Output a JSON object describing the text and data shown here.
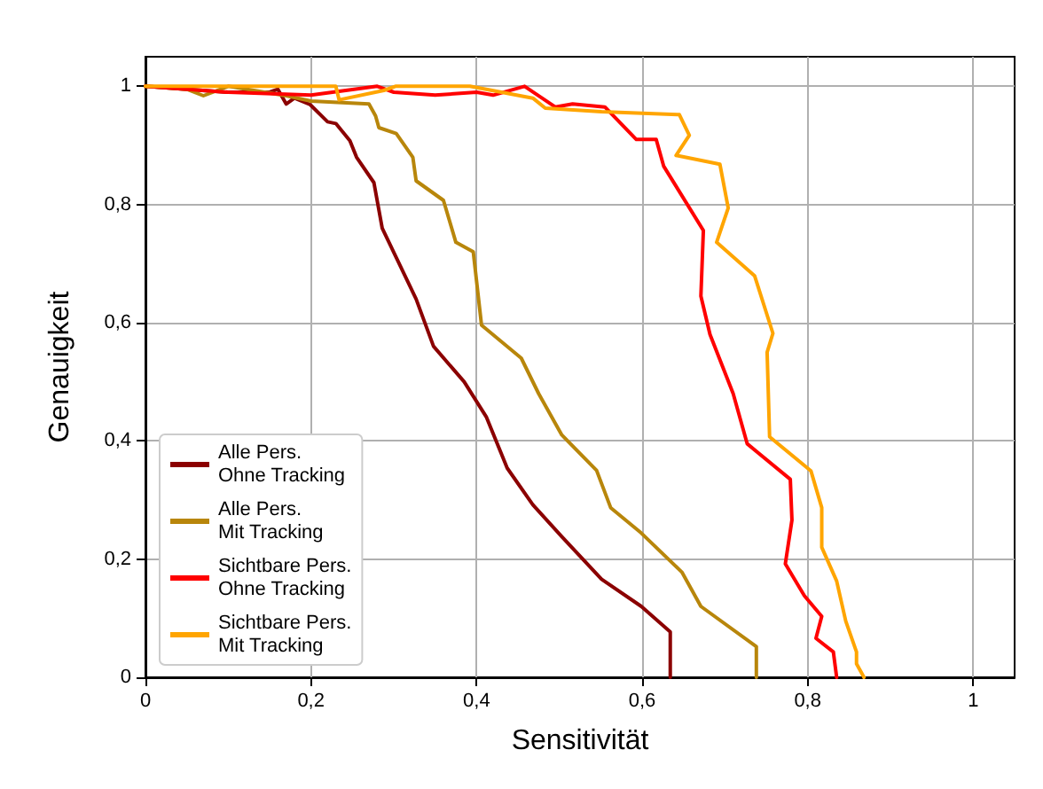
{
  "chart_data": {
    "type": "line",
    "xlabel": "Sensitivität",
    "ylabel": "Genauigkeit",
    "xlim": [
      0,
      1.05
    ],
    "ylim": [
      0,
      1.05
    ],
    "xticks": [
      0,
      {
        "value": 0.2,
        "label": "0,2"
      },
      {
        "value": 0.4,
        "label": "0,4"
      },
      {
        "value": 0.6,
        "label": "0,6"
      },
      {
        "value": 0.8,
        "label": "0,8"
      },
      1
    ],
    "yticks": [
      0,
      {
        "value": 0.2,
        "label": "0,2"
      },
      {
        "value": 0.4,
        "label": "0,4"
      },
      {
        "value": 0.6,
        "label": "0,6"
      },
      {
        "value": 0.8,
        "label": "0,8"
      },
      1
    ],
    "grid": true,
    "legend": "bottom left",
    "marker": "none",
    "line_style": "solid",
    "series": [
      {
        "name": "Alle Pers.\nOhne Tracking",
        "color": "#8b0000",
        "x": [
          0,
          0.05,
          0.1,
          0.15,
          0.16,
          0.17,
          0.18,
          0.199,
          0.22,
          0.23,
          0.247,
          0.255,
          0.276,
          0.286,
          0.327,
          0.348,
          0.385,
          0.412,
          0.437,
          0.468,
          0.503,
          0.551,
          0.599,
          0.634,
          0.634
        ],
        "values": [
          1,
          0.995,
          0.99,
          0.99,
          0.995,
          0.97,
          0.98,
          0.969,
          0.94,
          0.937,
          0.908,
          0.88,
          0.837,
          0.76,
          0.64,
          0.56,
          0.5,
          0.44,
          0.354,
          0.292,
          0.238,
          0.166,
          0.12,
          0.077,
          0
        ]
      },
      {
        "name": "Alle Pers.\nMit Tracking",
        "color": "#b8860b",
        "x": [
          0,
          0.05,
          0.07,
          0.1,
          0.17,
          0.2,
          0.27,
          0.278,
          0.282,
          0.303,
          0.323,
          0.327,
          0.36,
          0.375,
          0.396,
          0.406,
          0.454,
          0.475,
          0.503,
          0.545,
          0.562,
          0.599,
          0.648,
          0.671,
          0.738,
          0.738
        ],
        "values": [
          1,
          0.995,
          0.984,
          1,
          0.984,
          0.975,
          0.97,
          0.95,
          0.93,
          0.92,
          0.88,
          0.84,
          0.807,
          0.736,
          0.72,
          0.596,
          0.54,
          0.48,
          0.41,
          0.35,
          0.287,
          0.244,
          0.178,
          0.12,
          0.052,
          0
        ]
      },
      {
        "name": "Sichtbare Pers.\nOhne Tracking",
        "color": "#ff0000",
        "x": [
          0,
          0.1,
          0.2,
          0.28,
          0.3,
          0.35,
          0.4,
          0.42,
          0.458,
          0.495,
          0.516,
          0.555,
          0.593,
          0.617,
          0.626,
          0.674,
          0.671,
          0.682,
          0.71,
          0.727,
          0.779,
          0.781,
          0.773,
          0.796,
          0.817,
          0.81,
          0.831,
          0.835
        ],
        "values": [
          1,
          0.99,
          0.985,
          1,
          0.99,
          0.985,
          0.99,
          0.985,
          1,
          0.965,
          0.97,
          0.965,
          0.91,
          0.91,
          0.865,
          0.756,
          0.645,
          0.58,
          0.48,
          0.395,
          0.335,
          0.266,
          0.192,
          0.138,
          0.103,
          0.066,
          0.043,
          0
        ]
      },
      {
        "name": "Sichtbare Pers.\nMit Tracking",
        "color": "#ffa500",
        "x": [
          0,
          0.23,
          0.234,
          0.288,
          0.302,
          0.392,
          0.468,
          0.483,
          0.551,
          0.645,
          0.657,
          0.641,
          0.694,
          0.704,
          0.69,
          0.736,
          0.758,
          0.751,
          0.754,
          0.804,
          0.817,
          0.817,
          0.835,
          0.846,
          0.859,
          0.859,
          0.868
        ],
        "values": [
          1,
          1,
          0.977,
          0.993,
          1,
          1,
          0.98,
          0.963,
          0.957,
          0.952,
          0.917,
          0.883,
          0.868,
          0.794,
          0.736,
          0.679,
          0.582,
          0.55,
          0.407,
          0.349,
          0.287,
          0.22,
          0.163,
          0.095,
          0.043,
          0.023,
          0
        ]
      }
    ]
  }
}
